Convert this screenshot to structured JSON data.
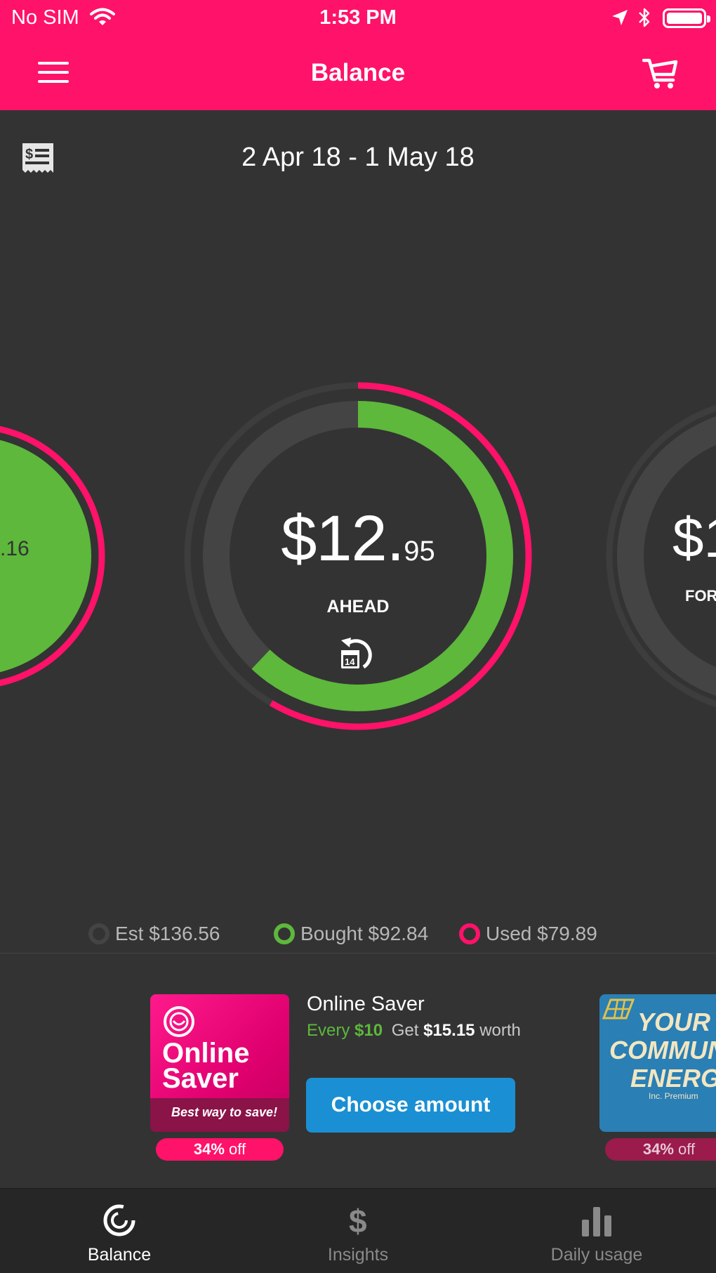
{
  "status_bar": {
    "carrier": "No SIM",
    "time": "1:53 PM"
  },
  "header": {
    "title": "Balance"
  },
  "period": {
    "date_range": "2 Apr 18 - 1 May 18"
  },
  "balance": {
    "amount_main": "$12.",
    "amount_cents": "95",
    "status": "AHEAD",
    "bought_fraction": 0.62,
    "used_fraction": 0.585,
    "left_value": ".16",
    "right_value": "$1",
    "right_word": "FOR"
  },
  "legend": {
    "est": "Est $136.56",
    "bought": "Bought $92.84",
    "used": "Used $79.89"
  },
  "promo": {
    "brand_line1": "Online",
    "brand_line2": "Saver",
    "tagline": "Best way to save!",
    "discount_value": "34%",
    "discount_suffix": " off",
    "title": "Online Saver",
    "every_label": "Every",
    "every_amount": "$10",
    "get_label": "Get",
    "get_amount": "$15.15",
    "worth_label": "worth",
    "button_label": "Choose amount",
    "second_line1": "YOUR",
    "second_line2": "COMMUNITY",
    "second_line3": "ENERGY",
    "second_small": "Inc. Premium",
    "second_discount_value": "34%",
    "second_discount_suffix": " off"
  },
  "tabs": [
    {
      "label": "Balance",
      "active": true
    },
    {
      "label": "Insights",
      "active": false
    },
    {
      "label": "Daily usage",
      "active": false
    }
  ],
  "colors": {
    "brand": "#FF1269",
    "bought": "#5DB83C",
    "track": "#444444",
    "background": "#333333",
    "button": "#1A8FD3"
  }
}
